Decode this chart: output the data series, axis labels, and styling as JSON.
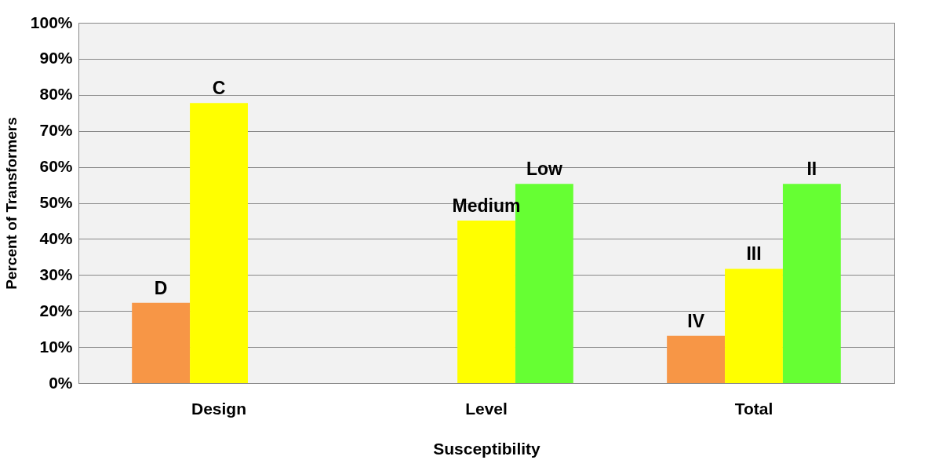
{
  "chart_data": {
    "type": "bar",
    "xlabel": "Susceptibility",
    "ylabel": "Percent of Transformers",
    "categories": [
      "Design",
      "Level",
      "Total"
    ],
    "series": [
      {
        "color": "#f79646",
        "values": [
          22.3,
          null,
          13.1
        ],
        "value_labels": [
          "D",
          null,
          "IV"
        ]
      },
      {
        "color": "#ffff00",
        "values": [
          77.7,
          45.1,
          31.7
        ],
        "value_labels": [
          "C",
          "Medium",
          "III"
        ]
      },
      {
        "color": "#66ff33",
        "values": [
          null,
          55.3,
          55.3
        ],
        "value_labels": [
          null,
          "Low",
          "II"
        ]
      }
    ],
    "ylim": [
      0,
      100
    ],
    "yticks": [
      {
        "value": 0,
        "label": "0%"
      },
      {
        "value": 10,
        "label": "10%"
      },
      {
        "value": 20,
        "label": "20%"
      },
      {
        "value": 30,
        "label": "30%"
      },
      {
        "value": 40,
        "label": "40%"
      },
      {
        "value": 50,
        "label": "50%"
      },
      {
        "value": 60,
        "label": "60%"
      },
      {
        "value": 70,
        "label": "70%"
      },
      {
        "value": 80,
        "label": "80%"
      },
      {
        "value": 90,
        "label": "90%"
      },
      {
        "value": 100,
        "label": "100%"
      }
    ],
    "grid": "y",
    "legend": false
  }
}
